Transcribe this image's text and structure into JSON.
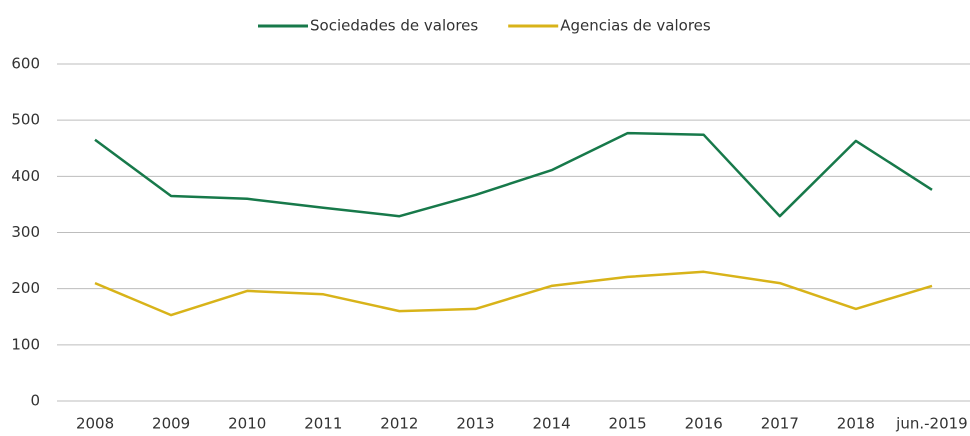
{
  "chart_data": {
    "type": "line",
    "categories": [
      "2008",
      "2009",
      "2010",
      "2011",
      "2012",
      "2013",
      "2014",
      "2015",
      "2016",
      "2017",
      "2018",
      "jun.-2019"
    ],
    "series": [
      {
        "name": "Sociedades de valores",
        "color": "#17794a",
        "values": [
          465,
          365,
          360,
          344,
          329,
          367,
          411,
          477,
          474,
          329,
          463,
          376
        ]
      },
      {
        "name": "Agencias de valores",
        "color": "#d8b319",
        "values": [
          210,
          153,
          196,
          190,
          160,
          164,
          205,
          221,
          230,
          210,
          164,
          205
        ]
      }
    ],
    "ylim": [
      0,
      600
    ],
    "yticks": [
      0,
      100,
      200,
      300,
      400,
      500,
      600
    ],
    "grid": true,
    "legend": "top"
  }
}
